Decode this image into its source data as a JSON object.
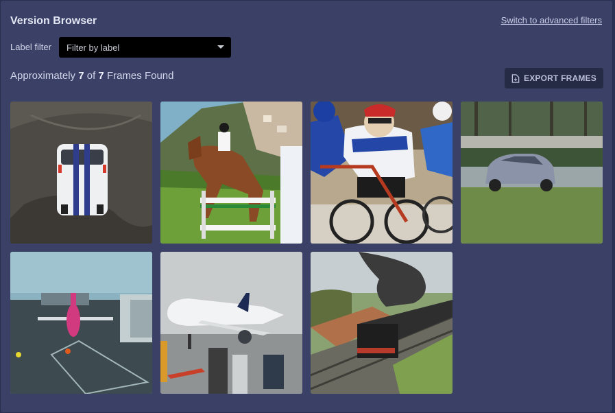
{
  "header": {
    "title": "Version Browser",
    "advanced_link": "Switch to advanced filters"
  },
  "filter": {
    "label": "Label filter",
    "placeholder": "Filter by label"
  },
  "results": {
    "prefix": "Approximately",
    "found": "7",
    "of": "of",
    "total": "7",
    "suffix": "Frames Found"
  },
  "export": {
    "label": "EXPORT FRAMES",
    "icon": "file-export-icon"
  },
  "frames": [
    {
      "subject": "white car"
    },
    {
      "subject": "horse jumping"
    },
    {
      "subject": "cyclists"
    },
    {
      "subject": "silver car"
    },
    {
      "subject": "pink airplane"
    },
    {
      "subject": "lufthansa airplane"
    },
    {
      "subject": "steam train"
    }
  ]
}
